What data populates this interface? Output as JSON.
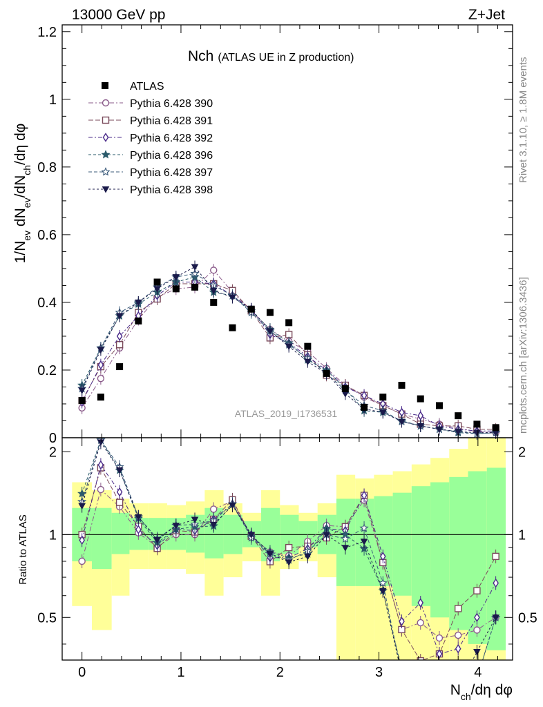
{
  "header": {
    "left": "13000 GeV pp",
    "right": "Z+Jet"
  },
  "side_labels": {
    "rivet": "Rivet 3.1.10, ≥ 1.8M events",
    "mcplots": "mcplots.cern.ch [arXiv:1306.3436]"
  },
  "watermark": "ATLAS_2019_I1736531",
  "chart_data": {
    "type": "scatter",
    "title": "Nch",
    "subtitle": "(ATLAS UE in Z production)",
    "xlabel": "N_ch/dη dφ",
    "ylabel": "1/N_ev dN_ev/dN_ch/dη dφ",
    "ratio_ylabel": "Ratio to ATLAS",
    "xlim": [
      -0.2,
      4.35
    ],
    "ylim": [
      0,
      1.22
    ],
    "ratio_ylim": [
      0.35,
      2.25
    ],
    "x_ticks": [
      "0",
      "1",
      "2",
      "3",
      "4"
    ],
    "y_ticks": [
      "0",
      "0.2",
      "0.4",
      "0.6",
      "0.8",
      "1",
      "1.2"
    ],
    "ratio_ticks": [
      "0.5",
      "1",
      "2"
    ],
    "legend_position": "top-left",
    "x": [
      0,
      0.19,
      0.38,
      0.57,
      0.76,
      0.95,
      1.14,
      1.33,
      1.52,
      1.71,
      1.9,
      2.09,
      2.28,
      2.47,
      2.66,
      2.85,
      3.04,
      3.23,
      3.42,
      3.61,
      3.8,
      3.99,
      4.18
    ],
    "data": {
      "name": "ATLAS",
      "values": [
        0.11,
        0.12,
        0.21,
        0.345,
        0.46,
        0.44,
        0.445,
        0.4,
        0.325,
        0.38,
        0.37,
        0.34,
        0.27,
        0.19,
        0.145,
        0.09,
        0.12,
        0.155,
        0.115,
        0.095,
        0.065,
        0.04,
        0.03
      ]
    },
    "series": [
      {
        "name": "Pythia 6.428 390",
        "color": "#8a5a8a",
        "marker": "circle-open",
        "values": [
          0.088,
          0.175,
          0.265,
          0.35,
          0.415,
          0.44,
          0.445,
          0.495,
          0.43,
          0.375,
          0.32,
          0.285,
          0.255,
          0.205,
          0.155,
          0.12,
          0.095,
          0.07,
          0.055,
          0.04,
          0.028,
          0.018,
          0.015
        ]
      },
      {
        "name": "Pythia 6.428 391",
        "color": "#7a4a5a",
        "marker": "square-open",
        "values": [
          0.11,
          0.21,
          0.275,
          0.37,
          0.41,
          0.455,
          0.455,
          0.455,
          0.435,
          0.375,
          0.295,
          0.305,
          0.245,
          0.185,
          0.155,
          0.125,
          0.095,
          0.07,
          0.04,
          0.035,
          0.035,
          0.025,
          0.025
        ]
      },
      {
        "name": "Pythia 6.428 392",
        "color": "#4a2a8a",
        "marker": "diamond-open",
        "values": [
          0.105,
          0.215,
          0.3,
          0.36,
          0.42,
          0.46,
          0.46,
          0.455,
          0.42,
          0.38,
          0.305,
          0.28,
          0.24,
          0.2,
          0.15,
          0.125,
          0.1,
          0.075,
          0.065,
          0.035,
          0.025,
          0.02,
          0.02
        ]
      },
      {
        "name": "Pythia 6.428 396",
        "color": "#2a5a6a",
        "marker": "star-filled",
        "values": [
          0.155,
          0.265,
          0.36,
          0.395,
          0.43,
          0.46,
          0.475,
          0.43,
          0.42,
          0.375,
          0.32,
          0.28,
          0.23,
          0.2,
          0.145,
          0.08,
          0.075,
          0.05,
          0.035,
          0.025,
          0.015,
          0.012,
          0.015
        ]
      },
      {
        "name": "Pythia 6.428 397",
        "color": "#3a5a7a",
        "marker": "star-open",
        "values": [
          0.145,
          0.265,
          0.37,
          0.4,
          0.445,
          0.475,
          0.485,
          0.45,
          0.42,
          0.37,
          0.315,
          0.275,
          0.235,
          0.19,
          0.14,
          0.095,
          0.08,
          0.048,
          0.035,
          0.025,
          0.018,
          0.012,
          0.015
        ]
      },
      {
        "name": "Pythia 6.428 398",
        "color": "#1a1a4a",
        "marker": "triangle-down-filled",
        "values": [
          0.14,
          0.26,
          0.36,
          0.4,
          0.44,
          0.475,
          0.505,
          0.435,
          0.415,
          0.38,
          0.315,
          0.27,
          0.225,
          0.19,
          0.13,
          0.085,
          0.075,
          0.048,
          0.035,
          0.025,
          0.018,
          0.015,
          0.015
        ]
      }
    ],
    "bands": {
      "colors": {
        "inner": "#99ff99",
        "outer": "#ffff99"
      },
      "edges": [
        -0.1,
        0.1,
        0.3,
        0.48,
        0.67,
        0.86,
        1.05,
        1.24,
        1.43,
        1.62,
        1.81,
        2.0,
        2.19,
        2.38,
        2.57,
        2.76,
        2.95,
        3.14,
        3.33,
        3.52,
        3.71,
        3.9,
        4.09,
        4.28
      ],
      "outer_lo": [
        0.55,
        0.45,
        0.6,
        0.75,
        0.75,
        0.75,
        0.72,
        0.6,
        0.7,
        0.8,
        0.6,
        0.75,
        0.8,
        0.7,
        0.35,
        0.35,
        0.35,
        0.35,
        0.35,
        0.35,
        0.35,
        0.35,
        0.35
      ],
      "outer_hi": [
        1.55,
        1.45,
        1.35,
        1.3,
        1.3,
        1.28,
        1.32,
        1.45,
        1.3,
        1.2,
        1.45,
        1.28,
        1.2,
        1.3,
        1.65,
        1.6,
        1.65,
        1.7,
        1.8,
        1.9,
        2.05,
        2.25,
        2.25
      ],
      "inner_lo": [
        0.8,
        0.75,
        0.85,
        0.88,
        0.88,
        0.88,
        0.86,
        0.82,
        0.85,
        0.9,
        0.8,
        0.85,
        0.9,
        0.85,
        0.65,
        0.65,
        0.65,
        0.6,
        0.55,
        0.5,
        0.45,
        0.4,
        0.38
      ],
      "inner_hi": [
        1.25,
        1.25,
        1.2,
        1.15,
        1.15,
        1.15,
        1.18,
        1.25,
        1.18,
        1.12,
        1.25,
        1.18,
        1.12,
        1.18,
        1.35,
        1.35,
        1.38,
        1.42,
        1.5,
        1.55,
        1.62,
        1.7,
        1.75
      ]
    }
  }
}
